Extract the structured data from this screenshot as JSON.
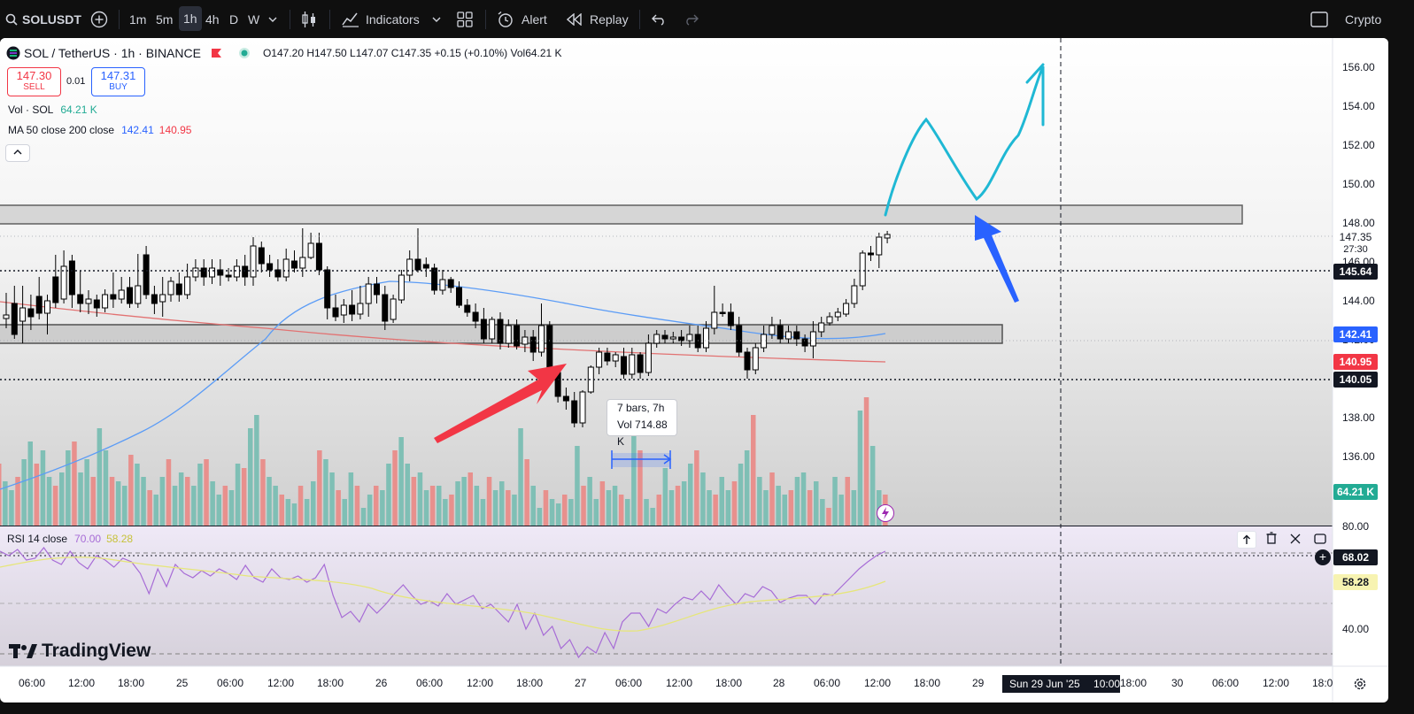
{
  "toolbar": {
    "symbol": "SOLUSDT",
    "intervals": [
      "1m",
      "5m",
      "1h",
      "4h",
      "D",
      "W"
    ],
    "active_interval": "1h",
    "indicators_label": "Indicators",
    "alert_label": "Alert",
    "replay_label": "Replay",
    "market_label": "Crypto"
  },
  "legend": {
    "title": "SOL / TetherUS · 1h · BINANCE",
    "ohlc": "O147.20 H147.50 L147.07 C147.35 +0.15 (+0.10%) Vol64.21 K",
    "sell_price": "147.30",
    "sell_label": "SELL",
    "spread": "0.01",
    "buy_price": "147.31",
    "buy_label": "BUY",
    "vol_label": "Vol · SOL",
    "vol_value": "64.21 K",
    "ma_label": "MA 50 close 200 close",
    "ma50_value": "142.41",
    "ma200_value": "140.95",
    "rsi_label": "RSI 14 close",
    "rsi_level": "70.00",
    "rsi_ma": "58.28"
  },
  "price_scale": {
    "ticks": [
      "156.00",
      "154.00",
      "152.00",
      "150.00",
      "148.00",
      "146.00",
      "144.00",
      "142.00",
      "138.00",
      "136.00",
      "134.00"
    ],
    "last_price": "147.35",
    "countdown": "27:30",
    "line_upper": "145.64",
    "ma50_badge": "142.41",
    "ma200_badge": "140.95",
    "line_lower": "140.05",
    "volume_badge": "64.21 K"
  },
  "rsi_scale": {
    "ticks": [
      "80.00",
      "40.00"
    ],
    "rsi_badge": "68.02",
    "rsi_ma_badge": "58.28"
  },
  "time_axis": {
    "labels": [
      "06:00",
      "12:00",
      "18:00",
      "25",
      "06:00",
      "12:00",
      "18:00",
      "26",
      "06:00",
      "12:00",
      "18:00",
      "27",
      "06:00",
      "12:00",
      "18:00",
      "28",
      "06:00",
      "12:00",
      "18:00",
      "29",
      "18:00",
      "30",
      "06:00",
      "12:00",
      "18:0"
    ],
    "crosshair_date": "Sun 29 Jun '25",
    "crosshair_time": "10:00"
  },
  "measure_tooltip": {
    "line1": "7 bars, 7h",
    "line2": "Vol 714.88 K"
  },
  "branding": "TradingView",
  "colors": {
    "up": "#ffffff",
    "down": "#000000",
    "volume_up": "#7fbfb5",
    "volume_down": "#e8908d",
    "ma50": "#5b9cf6",
    "ma200": "#e27272",
    "rsi": "#a76cd6",
    "rsi_ma": "#e6e67a",
    "arrow_red": "#f23645",
    "arrow_blue": "#2962ff",
    "sketch": "#1fb8d4",
    "sell": "#f23645",
    "buy": "#2962ff"
  }
}
